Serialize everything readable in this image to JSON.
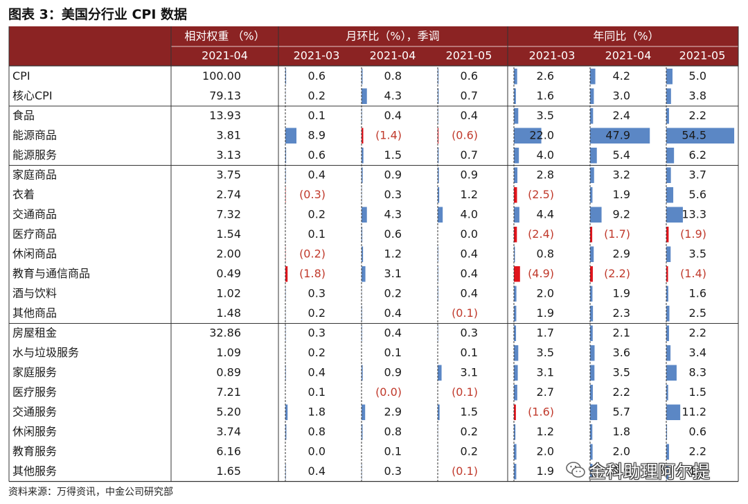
{
  "title": "图表 3：美国分行业 CPI 数据",
  "source": "资料来源：万得资讯，中金公司研究部",
  "watermark": "金科助理阿尔提",
  "header": {
    "weight_title": "相对权重 （%）",
    "mom_title": "月环比（%），季调",
    "yoy_title": "年同比（%）",
    "weight_month": "2021-04",
    "months": [
      "2021-03",
      "2021-04",
      "2021-05"
    ]
  },
  "colors": {
    "header_bg": "#8b2323",
    "bar_pos": "#5b87c5",
    "bar_neg": "#e0141c",
    "neg_text": "#c0392b"
  },
  "groups": [
    {
      "rows": [
        {
          "name": "CPI",
          "weight": "100.00",
          "mom": [
            0.6,
            0.8,
            0.6
          ],
          "yoy": [
            2.6,
            4.2,
            5.0
          ]
        },
        {
          "name": "核心CPI",
          "weight": "79.13",
          "mom": [
            0.2,
            4.3,
            0.7
          ],
          "yoy": [
            1.6,
            3.0,
            3.8
          ]
        }
      ]
    },
    {
      "rows": [
        {
          "name": "食品",
          "weight": "13.93",
          "mom": [
            0.1,
            0.4,
            0.4
          ],
          "yoy": [
            3.5,
            2.4,
            2.2
          ]
        },
        {
          "name": "能源商品",
          "weight": "3.81",
          "mom": [
            8.9,
            -1.4,
            -0.6
          ],
          "yoy": [
            22.0,
            47.9,
            54.5
          ]
        },
        {
          "name": "能源服务",
          "weight": "3.13",
          "mom": [
            0.6,
            1.5,
            0.7
          ],
          "yoy": [
            4.0,
            5.4,
            6.2
          ]
        }
      ]
    },
    {
      "rows": [
        {
          "name": "家庭商品",
          "weight": "3.75",
          "mom": [
            0.4,
            0.9,
            0.9
          ],
          "yoy": [
            2.8,
            3.2,
            3.7
          ]
        },
        {
          "name": "衣着",
          "weight": "2.74",
          "mom": [
            -0.3,
            0.3,
            1.2
          ],
          "yoy": [
            -2.5,
            1.9,
            5.6
          ]
        },
        {
          "name": "交通商品",
          "weight": "7.32",
          "mom": [
            0.2,
            4.3,
            4.0
          ],
          "yoy": [
            4.4,
            9.2,
            13.3
          ]
        },
        {
          "name": "医疗商品",
          "weight": "1.54",
          "mom": [
            0.1,
            0.6,
            0.0
          ],
          "yoy": [
            -2.4,
            -1.7,
            -1.9
          ]
        },
        {
          "name": "休闲商品",
          "weight": "2.00",
          "mom": [
            -0.2,
            1.2,
            0.4
          ],
          "yoy": [
            0.8,
            2.9,
            3.5
          ]
        },
        {
          "name": "教育与通信商品",
          "weight": "0.49",
          "mom": [
            -1.8,
            3.1,
            0.4
          ],
          "yoy": [
            -4.9,
            -2.2,
            -1.4
          ]
        },
        {
          "name": "酒与饮料",
          "weight": "1.02",
          "mom": [
            0.3,
            0.2,
            0.4
          ],
          "yoy": [
            2.0,
            1.9,
            1.6
          ]
        },
        {
          "name": "其他商品",
          "weight": "1.48",
          "mom": [
            0.2,
            0.4,
            -0.1
          ],
          "yoy": [
            1.9,
            2.3,
            2.5
          ]
        }
      ]
    },
    {
      "rows": [
        {
          "name": "房屋租金",
          "weight": "32.86",
          "mom": [
            0.3,
            0.4,
            0.3
          ],
          "yoy": [
            1.7,
            2.1,
            2.2
          ]
        },
        {
          "name": "水与垃圾服务",
          "weight": "1.09",
          "mom": [
            0.2,
            0.1,
            0.1
          ],
          "yoy": [
            3.5,
            3.6,
            3.4
          ]
        },
        {
          "name": "家庭服务",
          "weight": "0.89",
          "mom": [
            0.4,
            0.9,
            3.1
          ],
          "yoy": [
            3.1,
            3.5,
            8.3
          ]
        },
        {
          "name": "医疗服务",
          "weight": "7.21",
          "mom": [
            0.1,
            -0.0,
            -0.1
          ],
          "yoy": [
            2.7,
            2.2,
            1.5
          ]
        },
        {
          "name": "交通服务",
          "weight": "5.20",
          "mom": [
            1.8,
            2.9,
            1.5
          ],
          "yoy": [
            -1.6,
            5.7,
            11.2
          ]
        },
        {
          "name": "休闲服务",
          "weight": "3.74",
          "mom": [
            0.8,
            0.8,
            0.2
          ],
          "yoy": [
            1.2,
            1.8,
            0.6
          ]
        },
        {
          "name": "教育服务",
          "weight": "6.16",
          "mom": [
            0.0,
            0.1,
            0.2
          ],
          "yoy": [
            2.0,
            2.0,
            2.2
          ]
        },
        {
          "name": "其他服务",
          "weight": "1.65",
          "mom": [
            0.4,
            0.3,
            -0.1
          ],
          "yoy": [
            1.9,
            1.9,
            1.9
          ]
        }
      ]
    }
  ]
}
